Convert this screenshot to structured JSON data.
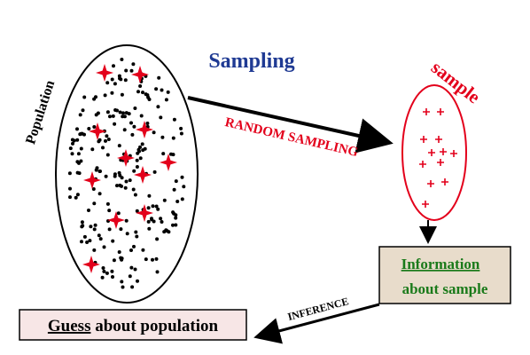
{
  "title": "Sampling",
  "population_label": "Population",
  "sample_label": "sample",
  "random_sampling_label": "RANDOM SAMPLING",
  "inference_label": "INFERENCE",
  "information_box": {
    "line1": "Information",
    "line2": "about sample"
  },
  "guess_box": {
    "word1": "Guess",
    "rest": " about population"
  },
  "colors": {
    "title": "#1f3a93",
    "red": "#e3001b",
    "green": "#1a7a1a",
    "info_box_fill": "#e8dccb",
    "guess_box_fill": "#f7e6e6",
    "ink": "#000000"
  },
  "icons": {
    "population_star": "four-point-star-icon",
    "sample_point": "plus-icon"
  }
}
